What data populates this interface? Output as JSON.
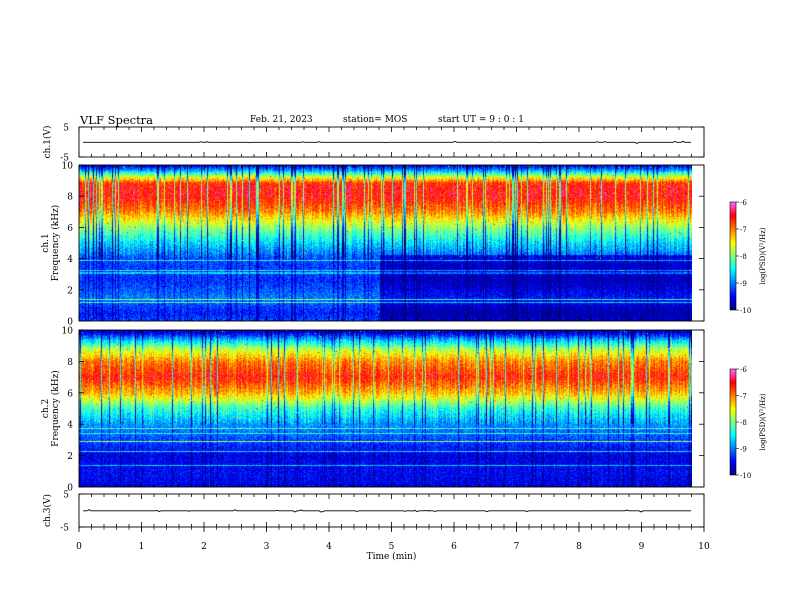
{
  "header": {
    "title": "VLF Spectra",
    "date": "Feb. 21, 2023",
    "station": "station= MOS",
    "start": "start  UT =   9 : 0  : 1"
  },
  "chart_data": [
    {
      "type": "line",
      "id": "ch1-waveform",
      "ylabel": "ch.1(V)",
      "ylim": [
        -5,
        5
      ],
      "yticks": [
        "5",
        "-5"
      ],
      "xlim": [
        0,
        10
      ],
      "series": [
        {
          "values": [
            -0.1,
            -0.1
          ]
        }
      ]
    },
    {
      "type": "heatmap",
      "id": "ch1-spectrogram",
      "ylabel": "ch.1 Frequency (kHz)",
      "ylabel_line1": "ch.1",
      "ylabel_line2": "Frequency (kHz)",
      "ylim": [
        0,
        10
      ],
      "yticks": [
        "0",
        "2",
        "4",
        "6",
        "8",
        "10"
      ],
      "xlim": [
        0,
        10
      ],
      "data_extent_min": 9.8,
      "colorbar": {
        "label": "log(PSD)(V²/Hz)",
        "range": [
          -10,
          -6
        ],
        "ticks": [
          "-6",
          "-7",
          "-8",
          "-9",
          "-10"
        ]
      },
      "band_profile_khz_logpsd": [
        [
          0,
          -9.2
        ],
        [
          0.5,
          -9.4
        ],
        [
          1.5,
          -9.0
        ],
        [
          2.5,
          -9.3
        ],
        [
          4,
          -9.2
        ],
        [
          5,
          -8.6
        ],
        [
          6,
          -7.9
        ],
        [
          7,
          -7.0
        ],
        [
          8,
          -6.5
        ],
        [
          8.8,
          -6.6
        ],
        [
          9.3,
          -7.8
        ],
        [
          9.7,
          -9.0
        ],
        [
          10,
          -9.6
        ]
      ],
      "change_time_min": 4.8
    },
    {
      "type": "heatmap",
      "id": "ch2-spectrogram",
      "ylabel": "ch.2 Frequency (kHz)",
      "ylabel_line1": "ch.2",
      "ylabel_line2": "Frequency (kHz)",
      "ylim": [
        0,
        10
      ],
      "yticks": [
        "0",
        "2",
        "4",
        "6",
        "8",
        "10"
      ],
      "xlim": [
        0,
        10
      ],
      "data_extent_min": 9.8,
      "colorbar": {
        "label": "log(PSD)(V²/Hz)",
        "range": [
          -10,
          -6
        ],
        "ticks": [
          "-6",
          "-7",
          "-8",
          "-9",
          "-10"
        ]
      },
      "band_profile_khz_logpsd": [
        [
          0,
          -9.6
        ],
        [
          1,
          -9.5
        ],
        [
          2,
          -9.6
        ],
        [
          3,
          -9.2
        ],
        [
          4,
          -8.9
        ],
        [
          5,
          -8.3
        ],
        [
          6,
          -7.2
        ],
        [
          7,
          -6.6
        ],
        [
          8,
          -7.0
        ],
        [
          8.8,
          -7.8
        ],
        [
          9.4,
          -8.8
        ],
        [
          9.8,
          -9.6
        ],
        [
          10,
          -9.8
        ]
      ]
    },
    {
      "type": "line",
      "id": "ch3-waveform",
      "ylabel": "ch.3(V)",
      "ylim": [
        -5,
        5
      ],
      "yticks": [
        "5",
        "-5"
      ],
      "xlim": [
        0,
        10
      ],
      "xlabel": "Time  (min)",
      "xticks": [
        "0",
        "1",
        "2",
        "3",
        "4",
        "5",
        "6",
        "7",
        "8",
        "9",
        "10"
      ],
      "series": [
        {
          "values": [
            -0.1,
            -0.1
          ]
        }
      ]
    }
  ],
  "colors": {
    "colormap": [
      "#00007f",
      "#0000ff",
      "#0080ff",
      "#00ffff",
      "#80ff80",
      "#ffff00",
      "#ff8000",
      "#ff0000",
      "#ff66ff"
    ]
  }
}
